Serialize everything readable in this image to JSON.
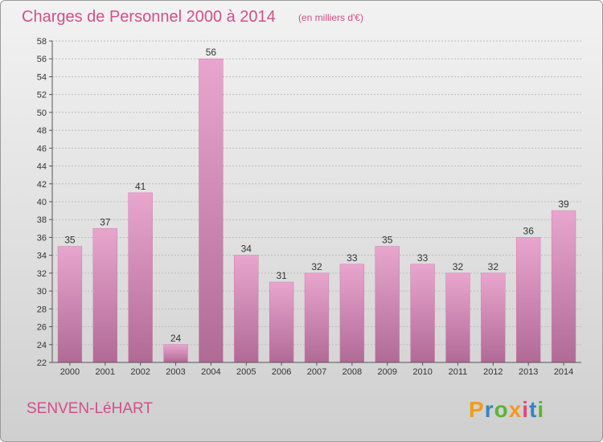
{
  "chart_data": {
    "type": "bar",
    "title": "Charges de Personnel 2000 à 2014",
    "subtitle": "(en milliers d'€)",
    "categories": [
      "2000",
      "2001",
      "2002",
      "2003",
      "2004",
      "2005",
      "2006",
      "2007",
      "2008",
      "2009",
      "2010",
      "2011",
      "2012",
      "2013",
      "2014"
    ],
    "values": [
      35,
      37,
      41,
      24,
      56,
      34,
      31,
      32,
      33,
      35,
      33,
      32,
      32,
      36,
      39
    ],
    "ylim": [
      22,
      58
    ],
    "ytick_step": 2,
    "grid": true,
    "bar_color": "#d07aa8",
    "xlabel": "",
    "ylabel": ""
  },
  "location": "SENVEN-LéHART",
  "logo": {
    "letters": [
      "P",
      "r",
      "o",
      "x",
      "i",
      "t",
      "i"
    ],
    "colors": [
      "#f39a1e",
      "#2f86c8",
      "#5bb531",
      "#f39a1e",
      "#e8457a",
      "#2f86c8",
      "#5bb531"
    ]
  }
}
